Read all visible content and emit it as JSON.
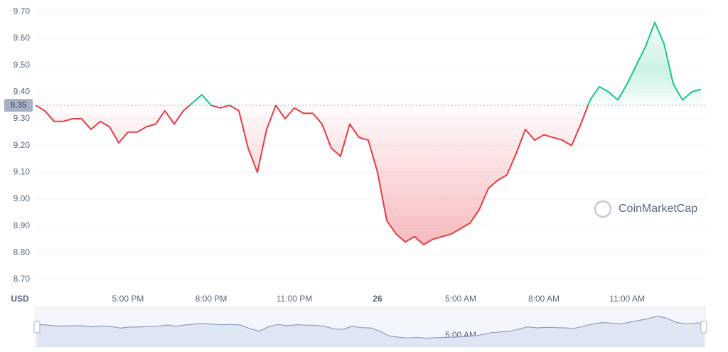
{
  "chart_data": {
    "type": "line",
    "axis_label": "USD",
    "watermark": "CoinMarketCap",
    "baseline": 9.35,
    "categories": [
      null,
      null,
      null,
      null,
      null,
      null,
      null,
      null,
      null,
      null,
      "5:00 PM",
      null,
      null,
      null,
      null,
      null,
      null,
      null,
      null,
      "8:00 PM",
      null,
      null,
      null,
      null,
      null,
      null,
      null,
      null,
      "11:00 PM",
      null,
      null,
      null,
      null,
      null,
      null,
      null,
      null,
      "26",
      null,
      null,
      null,
      null,
      null,
      null,
      null,
      null,
      "5:00 AM",
      null,
      null,
      null,
      null,
      null,
      null,
      null,
      null,
      "8:00 AM",
      null,
      null,
      null,
      null,
      null,
      null,
      null,
      null,
      "11:00 AM",
      null,
      null,
      null,
      null,
      null,
      null,
      null,
      null
    ],
    "values": [
      9.35,
      9.33,
      9.29,
      9.29,
      9.3,
      9.3,
      9.26,
      9.29,
      9.27,
      9.21,
      9.25,
      9.25,
      9.27,
      9.28,
      9.33,
      9.28,
      9.33,
      9.36,
      9.39,
      9.35,
      9.34,
      9.35,
      9.33,
      9.19,
      9.1,
      9.26,
      9.35,
      9.3,
      9.34,
      9.32,
      9.32,
      9.28,
      9.19,
      9.16,
      9.28,
      9.23,
      9.22,
      9.1,
      8.92,
      8.87,
      8.84,
      8.86,
      8.83,
      8.85,
      8.86,
      8.87,
      8.89,
      8.91,
      8.96,
      9.04,
      9.07,
      9.09,
      9.17,
      9.26,
      9.22,
      9.24,
      9.23,
      9.22,
      9.2,
      9.28,
      9.37,
      9.42,
      9.4,
      9.37,
      9.43,
      9.5,
      9.57,
      9.66,
      9.58,
      9.43,
      9.37,
      9.4,
      9.41
    ],
    "up_color": "#16c784",
    "down_color": "#ea3943",
    "ylim": [
      8.66,
      9.73
    ],
    "yticks": [
      {
        "value": 8.7,
        "label": "8.70"
      },
      {
        "value": 8.8,
        "label": "8.80"
      },
      {
        "value": 8.9,
        "label": "8.90"
      },
      {
        "value": 9.0,
        "label": "9.00"
      },
      {
        "value": 9.1,
        "label": "9.10"
      },
      {
        "value": 9.2,
        "label": "9.20"
      },
      {
        "value": 9.3,
        "label": "9.30"
      },
      {
        "value": 9.4,
        "label": "9.40"
      },
      {
        "value": 9.5,
        "label": "9.50"
      },
      {
        "value": 9.6,
        "label": "9.60"
      },
      {
        "value": 9.7,
        "label": "9.70"
      }
    ],
    "grid": true
  }
}
